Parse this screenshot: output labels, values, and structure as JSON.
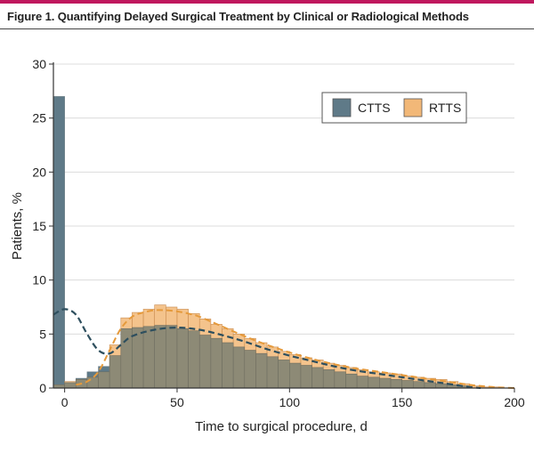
{
  "figure_title": "Figure 1. Quantifying Delayed Surgical Treatment by Clinical or Radiological Methods",
  "colors": {
    "accent": "#c0185e",
    "ctts": "#5f7a88",
    "rtts": "#f2b878",
    "overlap": "#8d8a76",
    "grid": "#dcdcdc",
    "axis": "#333333",
    "ctts_curve": "#2e4f5e",
    "rtts_curve": "#e59a3c"
  },
  "chart_data": {
    "type": "bar",
    "xlabel": "Time to surgical procedure, d",
    "ylabel": "Patients, %",
    "xlim": [
      -5,
      200
    ],
    "ylim": [
      0,
      30
    ],
    "x_ticks": [
      0,
      50,
      100,
      150,
      200
    ],
    "y_ticks": [
      0,
      5,
      10,
      15,
      20,
      25,
      30
    ],
    "grid": true,
    "legend_position": "top-right",
    "bin_width": 5,
    "bin_starts": [
      -5,
      0,
      5,
      10,
      15,
      20,
      25,
      30,
      35,
      40,
      45,
      50,
      55,
      60,
      65,
      70,
      75,
      80,
      85,
      90,
      95,
      100,
      105,
      110,
      115,
      120,
      125,
      130,
      135,
      140,
      145,
      150,
      155,
      160,
      165,
      170,
      175,
      180,
      185,
      190,
      195
    ],
    "series": [
      {
        "name": "CTTS",
        "values": [
          27.0,
          0.5,
          0.9,
          1.5,
          2.0,
          3.0,
          5.5,
          5.6,
          5.7,
          5.8,
          5.8,
          5.5,
          5.3,
          4.9,
          4.6,
          4.2,
          3.8,
          3.5,
          3.2,
          2.9,
          2.6,
          2.3,
          2.1,
          1.9,
          1.7,
          1.5,
          1.3,
          1.1,
          1.0,
          0.9,
          0.8,
          0.7,
          0.6,
          0.5,
          0.4,
          0.3,
          0.2,
          0.0,
          0.0,
          0.0,
          0.0
        ]
      },
      {
        "name": "RTTS",
        "values": [
          0.3,
          0.6,
          0.8,
          1.0,
          1.5,
          4.0,
          6.5,
          7.0,
          7.3,
          7.7,
          7.5,
          7.3,
          6.9,
          6.4,
          5.9,
          5.5,
          5.0,
          4.6,
          4.2,
          3.8,
          3.4,
          3.1,
          2.8,
          2.6,
          2.3,
          2.1,
          1.9,
          1.7,
          1.5,
          1.4,
          1.3,
          1.1,
          1.0,
          0.9,
          0.8,
          0.6,
          0.4,
          0.2,
          0.1,
          0.1,
          0.0
        ]
      }
    ],
    "density_curves": [
      {
        "name": "CTTS",
        "x": [
          -5,
          0,
          5,
          10,
          15,
          20,
          25,
          30,
          40,
          50,
          60,
          70,
          80,
          90,
          100,
          110,
          120,
          130,
          140,
          150,
          160,
          170,
          180,
          185
        ],
        "y": [
          6.8,
          7.3,
          6.8,
          5.0,
          3.5,
          3.2,
          4.0,
          4.8,
          5.4,
          5.6,
          5.4,
          4.9,
          4.3,
          3.6,
          3.0,
          2.5,
          2.0,
          1.6,
          1.3,
          1.0,
          0.7,
          0.4,
          0.1,
          0.0
        ]
      },
      {
        "name": "RTTS",
        "x": [
          5,
          10,
          15,
          20,
          25,
          30,
          35,
          40,
          45,
          50,
          55,
          60,
          70,
          80,
          90,
          100,
          110,
          120,
          130,
          140,
          150,
          160,
          170,
          180,
          190,
          200
        ],
        "y": [
          0.3,
          0.6,
          1.5,
          3.5,
          5.5,
          6.6,
          7.0,
          7.2,
          7.2,
          7.1,
          6.9,
          6.6,
          5.7,
          4.8,
          4.0,
          3.3,
          2.7,
          2.2,
          1.8,
          1.5,
          1.2,
          0.9,
          0.6,
          0.3,
          0.1,
          0.0
        ]
      }
    ]
  }
}
